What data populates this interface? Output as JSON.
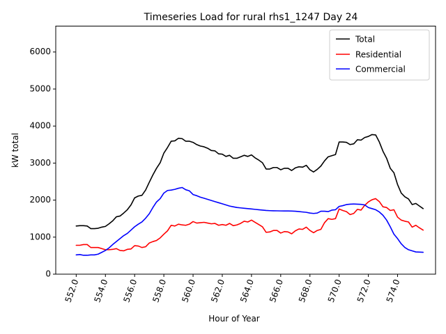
{
  "chart_data": {
    "type": "line",
    "title": "Timeseries Load for rural rhs1_1247  Day 24",
    "xlabel": "Hour of Year",
    "ylabel": "kW total",
    "xlim": [
      550.6,
      576.6
    ],
    "ylim": [
      0,
      6700
    ],
    "xticks": [
      552.0,
      554.0,
      556.0,
      558.0,
      560.0,
      562.0,
      564.0,
      566.0,
      568.0,
      570.0,
      572.0,
      574.0
    ],
    "xtick_labels": [
      "552.0",
      "554.0",
      "556.0",
      "558.0",
      "560.0",
      "562.0",
      "564.0",
      "566.0",
      "568.0",
      "570.0",
      "572.0",
      "574.0"
    ],
    "yticks": [
      0,
      1000,
      2000,
      3000,
      4000,
      5000,
      6000
    ],
    "ytick_labels": [
      "0",
      "1000",
      "2000",
      "3000",
      "4000",
      "5000",
      "6000"
    ],
    "legend_position": "top-right",
    "x_start": 552.0,
    "x_step": 0.25,
    "series": [
      {
        "name": "Total",
        "color": "#000000",
        "values": [
          1300,
          1310,
          1310,
          1300,
          1230,
          1230,
          1240,
          1270,
          1290,
          1360,
          1440,
          1550,
          1570,
          1650,
          1740,
          1870,
          2060,
          2110,
          2130,
          2270,
          2480,
          2680,
          2860,
          3010,
          3270,
          3420,
          3590,
          3600,
          3670,
          3660,
          3590,
          3590,
          3560,
          3500,
          3460,
          3440,
          3400,
          3340,
          3330,
          3250,
          3240,
          3180,
          3210,
          3130,
          3130,
          3170,
          3210,
          3180,
          3220,
          3140,
          3080,
          3010,
          2840,
          2840,
          2880,
          2880,
          2820,
          2860,
          2860,
          2800,
          2870,
          2900,
          2890,
          2940,
          2820,
          2760,
          2830,
          2920,
          3060,
          3170,
          3200,
          3230,
          3570,
          3570,
          3560,
          3500,
          3520,
          3630,
          3620,
          3690,
          3720,
          3770,
          3760,
          3570,
          3320,
          3130,
          2860,
          2740,
          2420,
          2190,
          2090,
          2030,
          1880,
          1910,
          1840,
          1770
        ]
      },
      {
        "name": "Residential",
        "color": "#ff0000",
        "values": [
          780,
          780,
          800,
          800,
          720,
          720,
          720,
          690,
          660,
          660,
          670,
          690,
          640,
          630,
          670,
          680,
          770,
          760,
          720,
          740,
          840,
          880,
          910,
          980,
          1080,
          1170,
          1320,
          1300,
          1350,
          1330,
          1320,
          1350,
          1420,
          1380,
          1390,
          1400,
          1380,
          1360,
          1370,
          1320,
          1340,
          1320,
          1370,
          1310,
          1330,
          1370,
          1430,
          1410,
          1460,
          1400,
          1340,
          1280,
          1130,
          1140,
          1180,
          1180,
          1110,
          1150,
          1140,
          1090,
          1170,
          1220,
          1210,
          1270,
          1180,
          1120,
          1180,
          1210,
          1390,
          1500,
          1480,
          1500,
          1760,
          1720,
          1690,
          1610,
          1640,
          1750,
          1730,
          1860,
          1950,
          2010,
          2040,
          1960,
          1820,
          1800,
          1720,
          1740,
          1540,
          1460,
          1430,
          1410,
          1270,
          1320,
          1250,
          1190
        ]
      },
      {
        "name": "Commercial",
        "color": "#0000ff",
        "values": [
          520,
          530,
          510,
          510,
          520,
          520,
          540,
          590,
          640,
          710,
          800,
          880,
          960,
          1040,
          1100,
          1190,
          1280,
          1350,
          1410,
          1510,
          1630,
          1800,
          1950,
          2040,
          2190,
          2260,
          2270,
          2290,
          2320,
          2340,
          2280,
          2250,
          2150,
          2120,
          2080,
          2050,
          2020,
          1990,
          1960,
          1930,
          1900,
          1870,
          1840,
          1820,
          1800,
          1790,
          1780,
          1770,
          1760,
          1750,
          1740,
          1730,
          1720,
          1715,
          1712,
          1710,
          1708,
          1707,
          1706,
          1705,
          1700,
          1690,
          1680,
          1670,
          1650,
          1640,
          1650,
          1700,
          1700,
          1690,
          1730,
          1740,
          1830,
          1850,
          1880,
          1890,
          1895,
          1890,
          1885,
          1870,
          1800,
          1770,
          1740,
          1680,
          1590,
          1460,
          1280,
          1080,
          960,
          820,
          720,
          660,
          630,
          600,
          595,
          590
        ]
      }
    ]
  }
}
